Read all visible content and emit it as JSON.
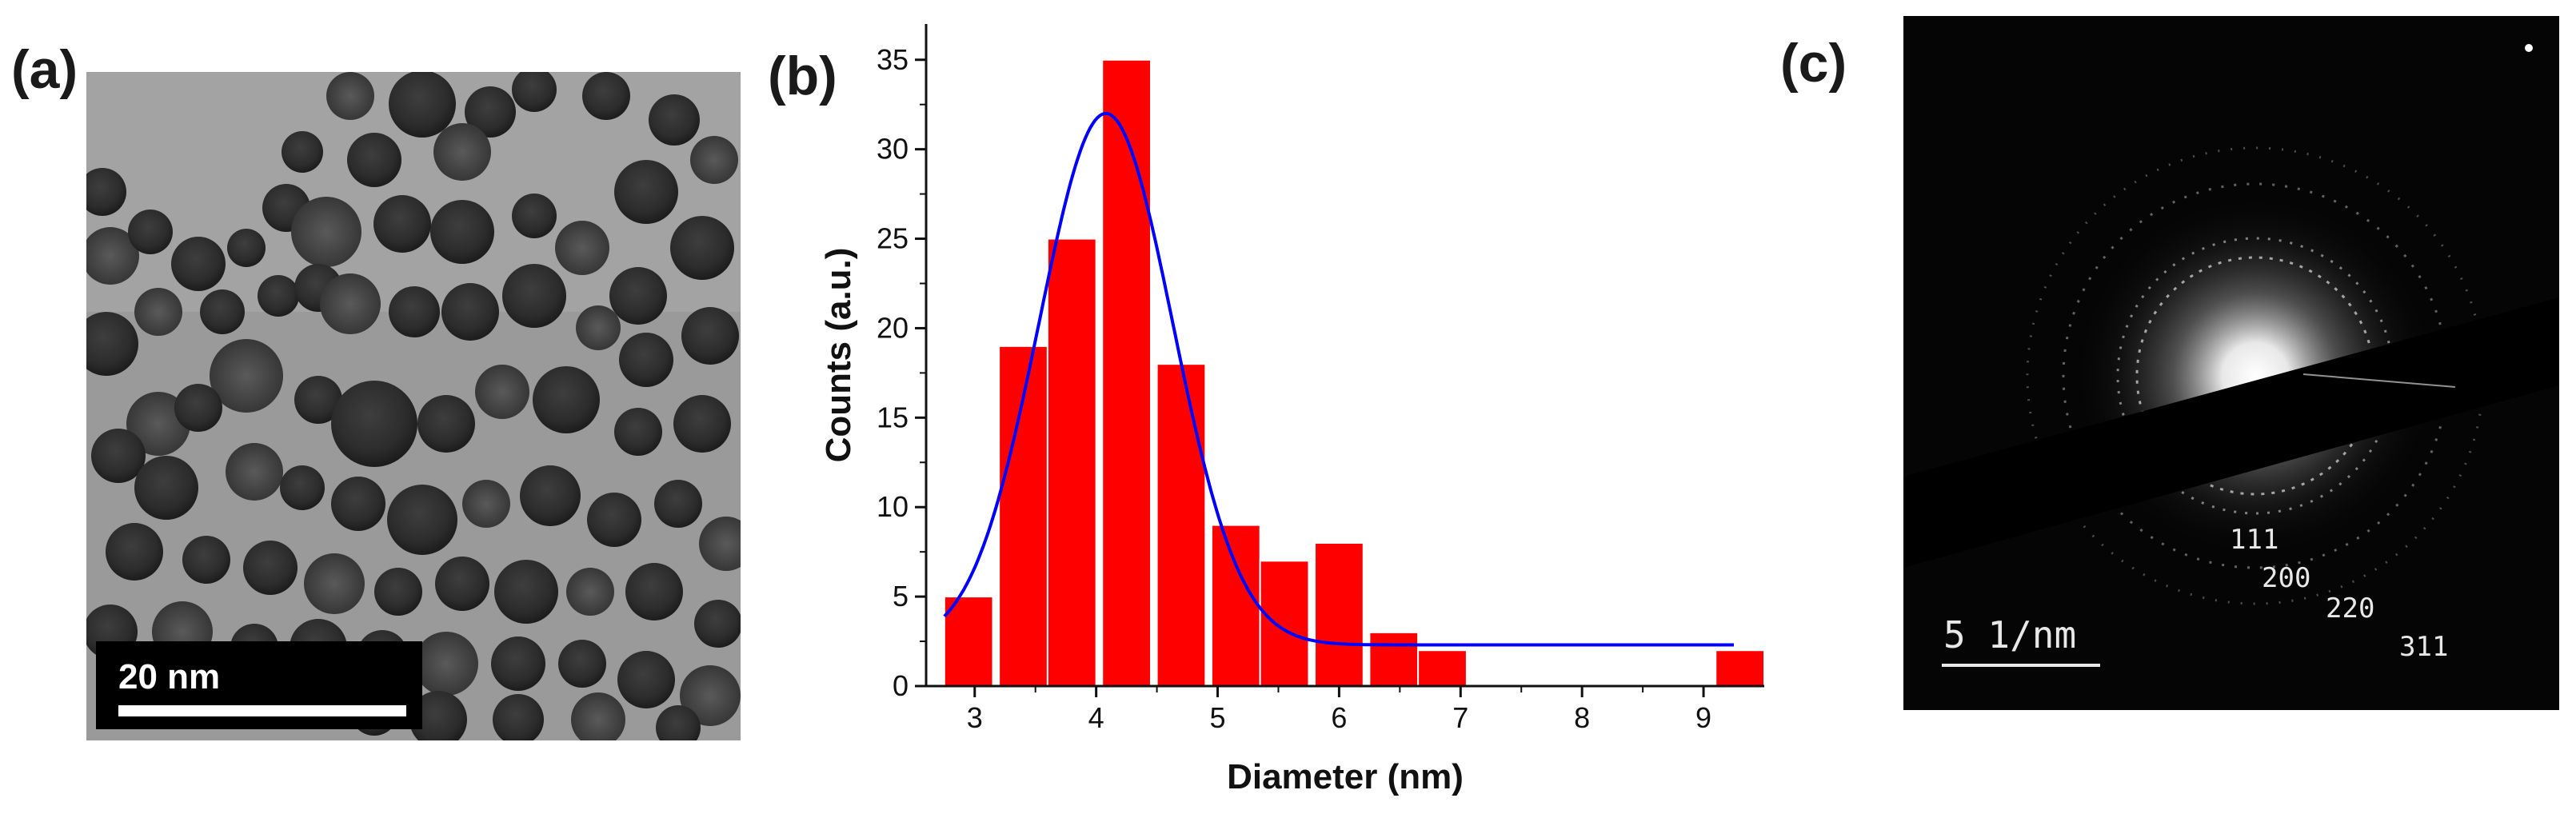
{
  "panels": {
    "a": {
      "label": "(a)",
      "scale_bar": "20 nm"
    },
    "b": {
      "label": "(b)"
    },
    "c": {
      "label": "(c)",
      "scale_bar": "5 1/nm",
      "ring_indices": [
        "111",
        "200",
        "220",
        "311"
      ]
    }
  },
  "chart_data": {
    "type": "bar",
    "title": "",
    "xlabel": "Diameter (nm)",
    "ylabel": "Counts  (a.u.)",
    "xlim": [
      2.6,
      9.5
    ],
    "ylim": [
      0,
      37
    ],
    "xticks": [
      3,
      4,
      5,
      6,
      7,
      8,
      9
    ],
    "yticks": [
      0,
      5,
      10,
      15,
      20,
      25,
      30,
      35
    ],
    "bar_width": 0.4,
    "bar_color": "#ff0000",
    "fit_color": "#0000ff",
    "bins": [
      {
        "center": 2.95,
        "value": 5
      },
      {
        "center": 3.4,
        "value": 19
      },
      {
        "center": 3.8,
        "value": 25
      },
      {
        "center": 4.25,
        "value": 35
      },
      {
        "center": 4.7,
        "value": 18
      },
      {
        "center": 5.15,
        "value": 9
      },
      {
        "center": 5.55,
        "value": 7
      },
      {
        "center": 6.0,
        "value": 8
      },
      {
        "center": 6.45,
        "value": 3
      },
      {
        "center": 6.85,
        "value": 2
      },
      {
        "center": 9.3,
        "value": 2
      }
    ],
    "fit": {
      "type": "gaussian",
      "baseline": 2.3,
      "amplitude": 29.7,
      "center": 4.08,
      "sigma": 0.55,
      "x_start": 2.75,
      "x_end": 9.25
    }
  }
}
